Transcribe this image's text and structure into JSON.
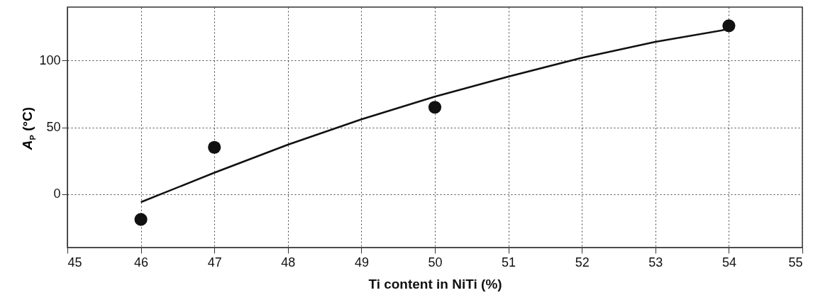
{
  "chart_data": {
    "type": "scatter",
    "xlabel": "Ti content in NiTi (%)",
    "ylabel": "A$_{P}$ (°C)",
    "xlim": [
      45,
      55
    ],
    "xticks": [
      45,
      46,
      47,
      48,
      49,
      50,
      51,
      52,
      53,
      54,
      55
    ],
    "ylim": [
      -40,
      140
    ],
    "yticks": [
      0,
      50,
      100
    ],
    "grid": true,
    "series": [
      {
        "color": "#111111",
        "marker": "circle",
        "x": [
          46,
          47,
          50,
          54
        ],
        "values": [
          -19,
          35,
          65,
          126
        ]
      },
      {
        "type": "line",
        "color": "#111111",
        "marker": "none",
        "x": [
          46,
          47,
          48,
          49,
          50,
          51,
          52,
          53,
          54
        ],
        "values": [
          -6,
          16,
          37,
          56,
          73,
          88,
          102,
          114,
          123.5
        ]
      }
    ]
  }
}
